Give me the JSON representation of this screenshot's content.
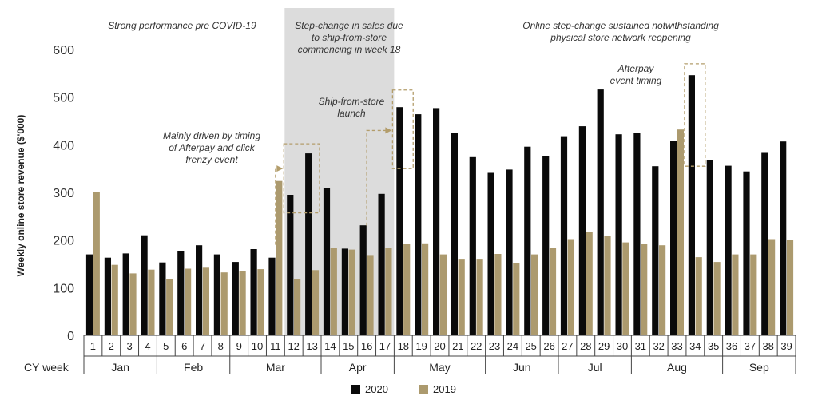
{
  "chart_data": {
    "type": "bar",
    "ylabel": "Weekly online store revenue ($'000)",
    "xlabel": "CY week",
    "ylim": [
      0,
      600
    ],
    "yticks": [
      0,
      100,
      200,
      300,
      400,
      500,
      600
    ],
    "categories": [
      "1",
      "2",
      "3",
      "4",
      "5",
      "6",
      "7",
      "8",
      "9",
      "10",
      "11",
      "12",
      "13",
      "14",
      "15",
      "16",
      "17",
      "18",
      "19",
      "20",
      "21",
      "22",
      "23",
      "24",
      "25",
      "26",
      "27",
      "28",
      "29",
      "30",
      "31",
      "32",
      "33",
      "34",
      "35",
      "36",
      "37",
      "38",
      "39"
    ],
    "months": [
      {
        "name": "Jan",
        "start_week": 1,
        "end_week": 4
      },
      {
        "name": "Feb",
        "start_week": 5,
        "end_week": 8
      },
      {
        "name": "Mar",
        "start_week": 9,
        "end_week": 13
      },
      {
        "name": "Apr",
        "start_week": 14,
        "end_week": 17
      },
      {
        "name": "May",
        "start_week": 18,
        "end_week": 22
      },
      {
        "name": "Jun",
        "start_week": 23,
        "end_week": 26
      },
      {
        "name": "Jul",
        "start_week": 27,
        "end_week": 30
      },
      {
        "name": "Aug",
        "start_week": 31,
        "end_week": 35
      },
      {
        "name": "Sep",
        "start_week": 36,
        "end_week": 39
      }
    ],
    "series": [
      {
        "name": "2020",
        "color": "#0a0a0a",
        "values": [
          170,
          163,
          172,
          210,
          153,
          177,
          189,
          170,
          154,
          181,
          163,
          295,
          382,
          310,
          182,
          231,
          297,
          479,
          464,
          477,
          424,
          374,
          341,
          348,
          396,
          376,
          418,
          439,
          516,
          422,
          425,
          355,
          409,
          546,
          367,
          356,
          344,
          383,
          407
        ]
      },
      {
        "name": "2019",
        "color": "#ac9a6e",
        "values": [
          300,
          148,
          130,
          138,
          118,
          140,
          142,
          132,
          134,
          139,
          324,
          119,
          137,
          184,
          180,
          167,
          183,
          191,
          193,
          170,
          159,
          159,
          171,
          152,
          170,
          184,
          202,
          217,
          208,
          195,
          192,
          189,
          432,
          164,
          154,
          170,
          170,
          202,
          200
        ]
      }
    ],
    "legend": {
      "position": "bottom-center",
      "entries": [
        "2020",
        "2019"
      ]
    },
    "shaded_region": {
      "start_week": 12,
      "end_week": 18,
      "color": "#dcdcdc"
    },
    "annotations": [
      {
        "text_lines": [
          "Strong performance pre COVID-19"
        ]
      },
      {
        "text_lines": [
          "Step-change in sales due",
          "to ship-from-store",
          "commencing in week 18"
        ]
      },
      {
        "text_lines": [
          "Online step-change sustained notwithstanding",
          "physical store network reopening"
        ]
      },
      {
        "text_lines": [
          "Mainly driven by timing",
          "of Afterpay and click",
          "frenzy event"
        ],
        "highlight_weeks": [
          12,
          13
        ]
      },
      {
        "text_lines": [
          "Ship-from-store",
          "launch"
        ],
        "highlight_weeks": [
          18
        ]
      },
      {
        "text_lines": [
          "Afterpay",
          "event timing"
        ],
        "highlight_weeks": [
          34
        ]
      }
    ]
  }
}
